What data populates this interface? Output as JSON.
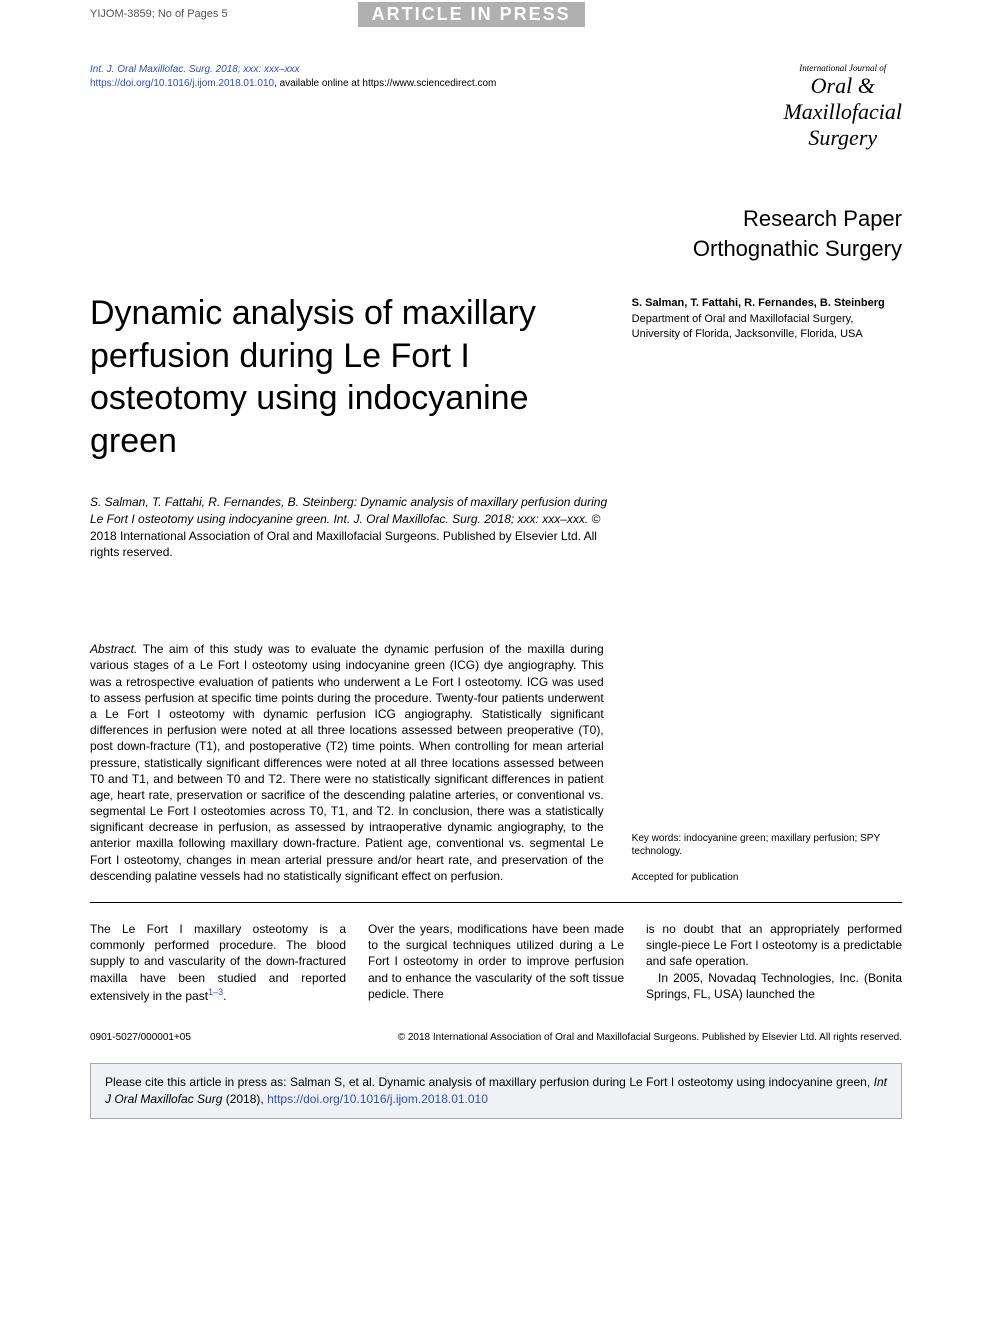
{
  "topbar": {
    "model_id": "YIJOM-3859; No of Pages 5",
    "press_banner": "ARTICLE IN PRESS"
  },
  "header": {
    "journal_ref": "Int. J. Oral Maxillofac. Surg. 2018; xxx: xxx–xxx",
    "doi_link": "https://doi.org/10.1016/j.ijom.2018.01.010",
    "available_text": ", available online at https://www.sciencedirect.com",
    "logo_small": "International Journal of",
    "logo_line1": "Oral &",
    "logo_line2": "Maxillofacial",
    "logo_line3": "Surgery"
  },
  "paper_type": {
    "line1": "Research Paper",
    "line2": "Orthognathic Surgery"
  },
  "title": "Dynamic analysis of maxillary perfusion during Le Fort I osteotomy using indocyanine green",
  "authors": {
    "names": "S. Salman, T. Fattahi, R. Fernandes, B. Steinberg",
    "affiliation": "Department of Oral and Maxillofacial Surgery, University of Florida, Jacksonville, Florida, USA"
  },
  "citation": {
    "italic": "S. Salman, T. Fattahi, R. Fernandes, B. Steinberg: Dynamic analysis of maxillary perfusion during Le Fort I osteotomy using indocyanine green. Int. J. Oral Maxillofac. Surg. 2018; xxx: xxx–xxx.",
    "rest": " © 2018 International Association of Oral and Maxillofacial Surgeons. Published by Elsevier Ltd. All rights reserved."
  },
  "abstract": {
    "label": "Abstract.",
    "text": " The aim of this study was to evaluate the dynamic perfusion of the maxilla during various stages of a Le Fort I osteotomy using indocyanine green (ICG) dye angiography. This was a retrospective evaluation of patients who underwent a Le Fort I osteotomy. ICG was used to assess perfusion at specific time points during the procedure. Twenty-four patients underwent a Le Fort I osteotomy with dynamic perfusion ICG angiography. Statistically significant differences in perfusion were noted at all three locations assessed between preoperative (T0), post down-fracture (T1), and postoperative (T2) time points. When controlling for mean arterial pressure, statistically significant differences were noted at all three locations assessed between T0 and T1, and between T0 and T2. There were no statistically significant differences in patient age, heart rate, preservation or sacrifice of the descending palatine arteries, or conventional vs. segmental Le Fort I osteotomies across T0, T1, and T2. In conclusion, there was a statistically significant decrease in perfusion, as assessed by intraoperative dynamic angiography, to the anterior maxilla following maxillary down-fracture. Patient age, conventional vs. segmental Le Fort I osteotomy, changes in mean arterial pressure and/or heart rate, and preservation of the descending palatine vessels had no statistically significant effect on perfusion."
  },
  "meta": {
    "keywords": "Key words: indocyanine green; maxillary perfusion; SPY technology.",
    "accepted": "Accepted for publication"
  },
  "body": {
    "col1": "The Le Fort I maxillary osteotomy is a commonly performed procedure. The blood supply to and vascularity of the down-fractured maxilla have been studied and reported extensively in the past",
    "col1_sup": "1–3",
    "col1_end": ".",
    "col2": "Over the years, modifications have been made to the surgical techniques utilized during a Le Fort I osteotomy in order to improve perfusion and to enhance the vascularity of the soft tissue pedicle. There",
    "col3a": "is no doubt that an appropriately performed single-piece Le Fort I osteotomy is a predictable and safe operation.",
    "col3b": "In 2005, Novadaq Technologies, Inc. (Bonita Springs, FL, USA) launched the"
  },
  "footer": {
    "left": "0901-5027/000001+05",
    "right": "© 2018 International Association of Oral and Maxillofacial Surgeons. Published by Elsevier Ltd. All rights reserved."
  },
  "citebox": {
    "pre": "Please cite this article in press as: Salman S, et al. Dynamic analysis of maxillary perfusion during Le Fort I osteotomy using indocyanine green, ",
    "ital": "Int J Oral Maxillofac Surg",
    "year": " (2018), ",
    "link": "https://doi.org/10.1016/j.ijom.2018.01.010"
  },
  "colors": {
    "link": "#2a4fc7",
    "banner_bg": "#b0b0b0",
    "citebox_bg": "#f0f1f4"
  }
}
